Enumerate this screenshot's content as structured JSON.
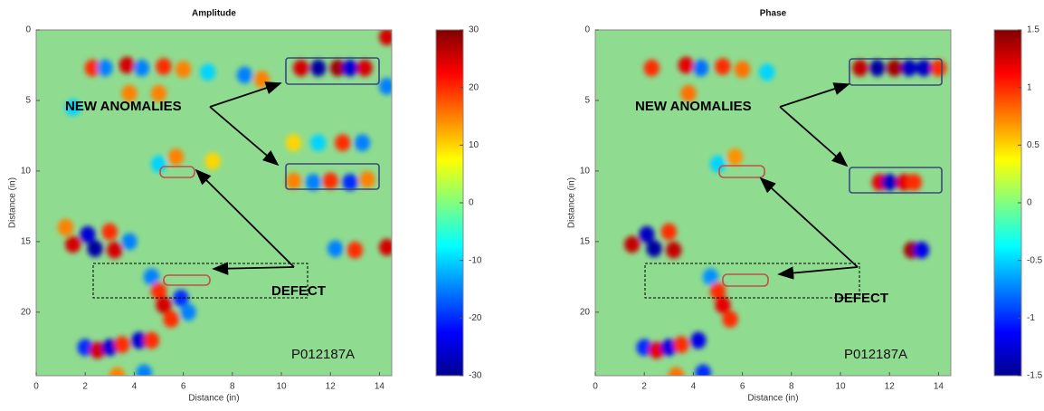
{
  "chart_data": [
    {
      "type": "heatmap",
      "title": "Amplitude",
      "xlabel": "Distance (in)",
      "ylabel": "Distance (in)",
      "xlim": [
        0,
        14.5
      ],
      "ylim": [
        0,
        24.5
      ],
      "yreverse": true,
      "xticks": [
        0,
        2,
        4,
        6,
        8,
        10,
        12,
        14
      ],
      "yticks": [
        0,
        5,
        10,
        15,
        20
      ],
      "clim": [
        -30,
        30
      ],
      "cticks": [
        -30,
        -20,
        -10,
        0,
        10,
        20,
        30
      ],
      "colormap": "jet",
      "x": [
        2.3,
        2.8,
        3.7,
        4.3,
        5.2,
        6.0,
        7.0,
        8.5,
        9.2,
        10.8,
        11.5,
        12.3,
        12.8,
        13.4,
        3.8,
        5.0,
        1.5,
        5.0,
        5.7,
        7.2,
        10.5,
        11.5,
        12.5,
        13.3,
        10.5,
        11.3,
        12.0,
        12.8,
        13.5,
        1.2,
        1.5,
        2.1,
        2.4,
        3.0,
        3.2,
        3.8,
        12.2,
        13.0,
        14.3,
        4.7,
        5.0,
        5.2,
        5.5,
        5.9,
        6.2,
        2.0,
        2.5,
        3.0,
        3.5,
        4.2,
        4.7,
        4.4,
        3.3,
        14.3,
        14.3
      ],
      "y": [
        2.7,
        2.7,
        2.5,
        2.7,
        2.6,
        2.8,
        3.0,
        3.2,
        3.5,
        2.7,
        2.7,
        2.7,
        2.7,
        2.7,
        4.5,
        4.5,
        5.5,
        9.5,
        9.0,
        9.3,
        8.0,
        8.0,
        8.0,
        8.0,
        10.7,
        10.8,
        10.7,
        10.8,
        10.6,
        14.0,
        15.2,
        14.5,
        15.5,
        14.3,
        15.6,
        15.0,
        15.5,
        15.6,
        15.4,
        17.5,
        18.5,
        19.5,
        20.5,
        19.0,
        20.0,
        22.5,
        22.7,
        22.5,
        22.3,
        22.0,
        22.0,
        24.3,
        24.5,
        0.5,
        4.0
      ],
      "values": [
        20,
        -15,
        25,
        -15,
        20,
        15,
        -10,
        -15,
        15,
        25,
        -28,
        28,
        -25,
        25,
        15,
        15,
        -10,
        -10,
        15,
        10,
        10,
        -10,
        20,
        -15,
        15,
        -15,
        20,
        -20,
        15,
        15,
        25,
        -25,
        -28,
        20,
        25,
        -15,
        -15,
        20,
        25,
        -15,
        20,
        25,
        20,
        -20,
        -15,
        -20,
        25,
        -25,
        20,
        -25,
        20,
        -15,
        15,
        25,
        -15
      ],
      "annotations": [
        "NEW ANOMALIES",
        "DEFECT",
        "P012187A"
      ]
    },
    {
      "type": "heatmap",
      "title": "Phase",
      "xlabel": "Distance (in)",
      "ylabel": "Distance (in)",
      "xlim": [
        0,
        14.5
      ],
      "ylim": [
        0,
        24.5
      ],
      "yreverse": true,
      "xticks": [
        0,
        2,
        4,
        6,
        8,
        10,
        12,
        14
      ],
      "yticks": [
        0,
        5,
        10,
        15,
        20
      ],
      "clim": [
        -1.5,
        1.5
      ],
      "cticks": [
        -1.5,
        -1,
        -0.5,
        0,
        0.5,
        1,
        1.5
      ],
      "colormap": "jet",
      "x": [
        2.3,
        3.7,
        4.3,
        5.2,
        6.0,
        7.0,
        10.8,
        11.5,
        12.2,
        12.8,
        13.4,
        14.0,
        3.8,
        11.6,
        12.0,
        12.6,
        13.0,
        5.0,
        5.7,
        1.5,
        2.1,
        2.4,
        3.0,
        3.2,
        12.9,
        13.3,
        4.7,
        5.0,
        5.2,
        5.5,
        2.0,
        2.5,
        3.0,
        3.5,
        4.2,
        4.4,
        3.3
      ],
      "y": [
        2.7,
        2.5,
        2.7,
        2.6,
        2.8,
        3.0,
        2.7,
        2.7,
        2.7,
        2.7,
        2.7,
        2.7,
        4.5,
        10.8,
        10.8,
        10.8,
        10.8,
        9.5,
        9.0,
        15.2,
        14.5,
        15.5,
        14.3,
        15.6,
        15.6,
        15.6,
        17.5,
        18.5,
        19.5,
        20.5,
        22.5,
        22.7,
        22.5,
        22.3,
        22.0,
        24.3,
        24.5
      ],
      "values": [
        1.0,
        1.2,
        -0.8,
        1.0,
        0.8,
        -0.5,
        1.3,
        -1.4,
        1.4,
        -1.3,
        -1.3,
        1.0,
        0.8,
        1.2,
        -1.3,
        1.2,
        1.0,
        -0.5,
        0.7,
        1.3,
        -1.3,
        -1.4,
        1.0,
        1.3,
        1.4,
        -1.2,
        -0.7,
        1.0,
        1.2,
        1.0,
        -1.0,
        1.2,
        -1.2,
        1.0,
        -1.2,
        -1.0,
        0.8
      ],
      "annotations": [
        "NEW ANOMALIES",
        "DEFECT",
        "P012187A"
      ]
    }
  ]
}
